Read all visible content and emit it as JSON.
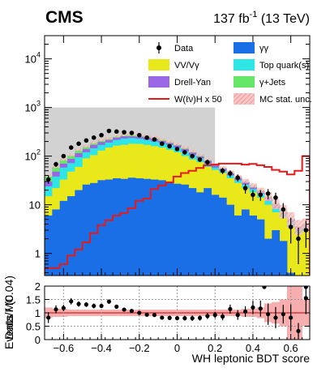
{
  "header": {
    "experiment": "CMS",
    "lumi_value": "137 fb",
    "lumi_exp": "-1",
    "lumi_energy": " (13 TeV)"
  },
  "colors": {
    "gg": "#1a6ee6",
    "vv": "#e8e81a",
    "top": "#2ee6e6",
    "dy": "#9966e6",
    "gjets": "#66e666",
    "signal": "#e61a1a",
    "unc": "#f4a0a0",
    "blind": "#d2d2d2"
  },
  "chart_data": [
    {
      "type": "area",
      "stacked": true,
      "ylabel": "Events / (0.04)",
      "yscale": "log",
      "ylim": [
        0.35,
        30000
      ],
      "xlim": [
        -0.7,
        0.7
      ],
      "y_ticks": [
        {
          "v": 10,
          "label": "10",
          "sup": ""
        },
        {
          "v": 100,
          "label": "10",
          "sup": "2"
        },
        {
          "v": 1000,
          "label": "10",
          "sup": "3"
        },
        {
          "v": 10000,
          "label": "10",
          "sup": "4"
        }
      ],
      "bin_edges": [
        -0.7,
        -0.66,
        -0.62,
        -0.58,
        -0.54,
        -0.5,
        -0.46,
        -0.42,
        -0.38,
        -0.34,
        -0.3,
        -0.26,
        -0.22,
        -0.18,
        -0.14,
        -0.1,
        -0.06,
        -0.02,
        0.02,
        0.06,
        0.1,
        0.14,
        0.18,
        0.22,
        0.26,
        0.3,
        0.34,
        0.38,
        0.42,
        0.46,
        0.5,
        0.54,
        0.58,
        0.62,
        0.66,
        0.7
      ],
      "blinded_region": [
        -0.7,
        0.2
      ],
      "legend": [
        {
          "key": "data",
          "label": "Data",
          "kind": "marker"
        },
        {
          "key": "gg",
          "label": "γγ",
          "kind": "fill"
        },
        {
          "key": "vv",
          "label": "VV/Vγ",
          "kind": "fill"
        },
        {
          "key": "top",
          "label": "Top quark(s)",
          "kind": "fill"
        },
        {
          "key": "dy",
          "label": "Drell-Yan",
          "kind": "fill"
        },
        {
          "key": "gjets",
          "label": "γ+Jets",
          "kind": "fill"
        },
        {
          "key": "signal",
          "label": "W(ℓν)H x 50",
          "kind": "line"
        },
        {
          "key": "unc",
          "label": "MC stat. unc.",
          "kind": "hatch"
        }
      ],
      "series": [
        {
          "key": "gg",
          "values": [
            6,
            8,
            12,
            15,
            20,
            26,
            28,
            32,
            33,
            35,
            34,
            36,
            35,
            34,
            33,
            32,
            30,
            27,
            26,
            22,
            18,
            22,
            16,
            14,
            10,
            6,
            8,
            6,
            5,
            2,
            3,
            1.8,
            0.4,
            0.3,
            0.3
          ]
        },
        {
          "key": "vv",
          "values": [
            15,
            22,
            33,
            48,
            60,
            90,
            105,
            130,
            150,
            165,
            170,
            180,
            178,
            170,
            160,
            150,
            135,
            120,
            100,
            85,
            75,
            60,
            52,
            45,
            35,
            28,
            22,
            18,
            14,
            10,
            7,
            5.5,
            3.5,
            2.6,
            3
          ]
        },
        {
          "key": "top",
          "values": [
            24,
            38,
            58,
            72,
            95,
            120,
            145,
            170,
            190,
            215,
            230,
            235,
            228,
            215,
            200,
            185,
            170,
            150,
            125,
            105,
            90,
            70,
            58,
            50,
            40,
            32,
            26,
            21,
            17,
            12,
            8.5,
            6.5,
            4.5,
            3,
            3.5
          ]
        },
        {
          "key": "dy",
          "values": [
            30,
            48,
            70,
            88,
            115,
            140,
            170,
            195,
            215,
            240,
            255,
            255,
            250,
            240,
            225,
            205,
            185,
            165,
            140,
            118,
            98,
            80,
            64,
            55,
            44,
            36,
            29,
            23,
            19,
            14,
            10,
            7,
            5,
            3.4,
            3.8
          ]
        },
        {
          "key": "gjets",
          "values": [
            40,
            60,
            85,
            105,
            135,
            160,
            190,
            215,
            235,
            260,
            275,
            280,
            270,
            258,
            240,
            220,
            198,
            175,
            150,
            125,
            105,
            85,
            68,
            58,
            47,
            38,
            31,
            25,
            20,
            15,
            10.5,
            7.5,
            5.2,
            3.6,
            4
          ]
        }
      ],
      "signal": [
        0.5,
        0.5,
        0.6,
        0.9,
        1.2,
        1.7,
        2.6,
        3.8,
        4.8,
        6,
        6.8,
        8.5,
        12,
        13.5,
        21,
        25,
        29,
        38,
        45,
        50,
        57,
        65,
        67,
        70,
        70,
        70,
        67,
        69,
        65,
        60,
        52,
        48,
        42,
        50,
        100
      ],
      "data": [
        {
          "x": -0.68,
          "y": 33,
          "err": 6
        },
        {
          "x": -0.64,
          "y": 68,
          "err": 8
        },
        {
          "x": -0.6,
          "y": 100,
          "err": 10
        },
        {
          "x": -0.56,
          "y": 150,
          "err": 12
        },
        {
          "x": -0.52,
          "y": 180,
          "err": 13
        },
        {
          "x": -0.48,
          "y": 210,
          "err": 14
        },
        {
          "x": -0.44,
          "y": 240,
          "err": 15
        },
        {
          "x": -0.4,
          "y": 270,
          "err": 16
        },
        {
          "x": -0.36,
          "y": 330,
          "err": 18
        },
        {
          "x": -0.32,
          "y": 320,
          "err": 18
        },
        {
          "x": -0.28,
          "y": 310,
          "err": 18
        },
        {
          "x": -0.24,
          "y": 300,
          "err": 17
        },
        {
          "x": -0.2,
          "y": 270,
          "err": 16
        },
        {
          "x": -0.16,
          "y": 240,
          "err": 15
        },
        {
          "x": -0.12,
          "y": 220,
          "err": 15
        },
        {
          "x": -0.08,
          "y": 180,
          "err": 13
        },
        {
          "x": -0.04,
          "y": 160,
          "err": 13
        },
        {
          "x": 0.0,
          "y": 140,
          "err": 12
        },
        {
          "x": 0.04,
          "y": 120,
          "err": 11
        },
        {
          "x": 0.08,
          "y": 100,
          "err": 10
        },
        {
          "x": 0.12,
          "y": 85,
          "err": 9
        },
        {
          "x": 0.16,
          "y": 75,
          "err": 9
        },
        {
          "x": 0.24,
          "y": 50,
          "err": 7
        },
        {
          "x": 0.28,
          "y": 44,
          "err": 7
        },
        {
          "x": 0.32,
          "y": 36,
          "err": 6
        },
        {
          "x": 0.36,
          "y": 22,
          "err": 5
        },
        {
          "x": 0.4,
          "y": 16,
          "err": 4
        },
        {
          "x": 0.44,
          "y": 16,
          "err": 4
        },
        {
          "x": 0.48,
          "y": 17,
          "err": 4
        },
        {
          "x": 0.52,
          "y": 14,
          "err": 3.7
        },
        {
          "x": 0.56,
          "y": 8,
          "err": 2.8
        },
        {
          "x": 0.6,
          "y": 3.5,
          "err": 1.9
        },
        {
          "x": 0.64,
          "y": 2,
          "err": 1.4
        },
        {
          "x": 0.68,
          "y": 3,
          "err": 1.7
        }
      ],
      "mc_unc_rel": [
        0.05,
        0.05,
        0.05,
        0.05,
        0.05,
        0.05,
        0.05,
        0.05,
        0.05,
        0.05,
        0.05,
        0.05,
        0.05,
        0.05,
        0.05,
        0.05,
        0.05,
        0.05,
        0.05,
        0.05,
        0.05,
        0.05,
        0.05,
        0.06,
        0.07,
        0.08,
        0.09,
        0.1,
        0.12,
        0.2,
        0.22,
        0.3,
        0.35,
        0.35,
        0.3
      ]
    },
    {
      "type": "scatter",
      "ylabel": "Data/MC",
      "xlabel": "WH leptonic BDT score",
      "xlim": [
        -0.7,
        0.7
      ],
      "ylim": [
        0,
        2
      ],
      "x_ticks": [
        -0.6,
        -0.4,
        -0.2,
        0,
        0.2,
        0.4,
        0.6
      ],
      "x_tick_labels": [
        "−0.6",
        "−0.4",
        "−0.2",
        "0",
        "0.2",
        "0.4",
        "0.6"
      ],
      "y_ticks": [
        0,
        0.5,
        1,
        1.5,
        2
      ],
      "y_tick_labels": [
        "0",
        "0.5",
        "1",
        "1.5",
        "2"
      ],
      "unc_band": [
        0.2,
        0.15,
        0.15,
        0.12,
        0.12,
        0.12,
        0.12,
        0.12,
        0.12,
        0.12,
        0.12,
        0.12,
        0.12,
        0.12,
        0.12,
        0.12,
        0.12,
        0.12,
        0.12,
        0.12,
        0.12,
        0.12,
        0.12,
        0.12,
        0.12,
        0.12,
        0.15,
        0.15,
        0.2,
        0.35,
        0.4,
        0.5,
        1.0,
        1.0,
        0.5
      ],
      "ratios": [
        {
          "x": -0.68,
          "y": 0.82,
          "err": 0.2
        },
        {
          "x": -0.64,
          "y": 1.13,
          "err": 0.15
        },
        {
          "x": -0.6,
          "y": 1.18,
          "err": 0.12
        },
        {
          "x": -0.56,
          "y": 1.43,
          "err": 0.12
        },
        {
          "x": -0.52,
          "y": 1.33,
          "err": 0.1
        },
        {
          "x": -0.48,
          "y": 1.31,
          "err": 0.09
        },
        {
          "x": -0.44,
          "y": 1.26,
          "err": 0.09
        },
        {
          "x": -0.4,
          "y": 1.26,
          "err": 0.08
        },
        {
          "x": -0.36,
          "y": 1.42,
          "err": 0.08
        },
        {
          "x": -0.32,
          "y": 1.23,
          "err": 0.07
        },
        {
          "x": -0.28,
          "y": 1.12,
          "err": 0.07
        },
        {
          "x": -0.24,
          "y": 1.07,
          "err": 0.07
        },
        {
          "x": -0.2,
          "y": 1.0,
          "err": 0.07
        },
        {
          "x": -0.16,
          "y": 0.93,
          "err": 0.07
        },
        {
          "x": -0.12,
          "y": 0.92,
          "err": 0.07
        },
        {
          "x": -0.08,
          "y": 0.82,
          "err": 0.07
        },
        {
          "x": -0.04,
          "y": 0.81,
          "err": 0.08
        },
        {
          "x": 0.0,
          "y": 0.8,
          "err": 0.08
        },
        {
          "x": 0.04,
          "y": 0.8,
          "err": 0.09
        },
        {
          "x": 0.08,
          "y": 0.8,
          "err": 0.1
        },
        {
          "x": 0.12,
          "y": 0.81,
          "err": 0.1
        },
        {
          "x": 0.16,
          "y": 0.88,
          "err": 0.11
        },
        {
          "x": 0.2,
          "y": 0.92,
          "err": 0.12
        },
        {
          "x": 0.24,
          "y": 0.86,
          "err": 0.14
        },
        {
          "x": 0.28,
          "y": 1.14,
          "err": 0.17
        },
        {
          "x": 0.32,
          "y": 0.92,
          "err": 0.18
        },
        {
          "x": 0.36,
          "y": 1.05,
          "err": 0.2
        },
        {
          "x": 0.4,
          "y": 1.2,
          "err": 0.25
        },
        {
          "x": 0.44,
          "y": 1.16,
          "err": 0.3
        },
        {
          "x": 0.48,
          "y": 0.95,
          "err": 0.4
        },
        {
          "x": 0.52,
          "y": 0.82,
          "err": 0.4
        },
        {
          "x": 0.56,
          "y": 0.95,
          "err": 0.35
        },
        {
          "x": 0.6,
          "y": 0.82,
          "err": 0.5
        },
        {
          "x": 0.64,
          "y": 0.32,
          "err": 0.3
        },
        {
          "x": 0.68,
          "y": 1.55,
          "err": 0.6
        }
      ],
      "overflow_points": [
        {
          "x": 0.46,
          "y": 2
        },
        {
          "x": 0.68,
          "y": 2
        }
      ]
    }
  ]
}
